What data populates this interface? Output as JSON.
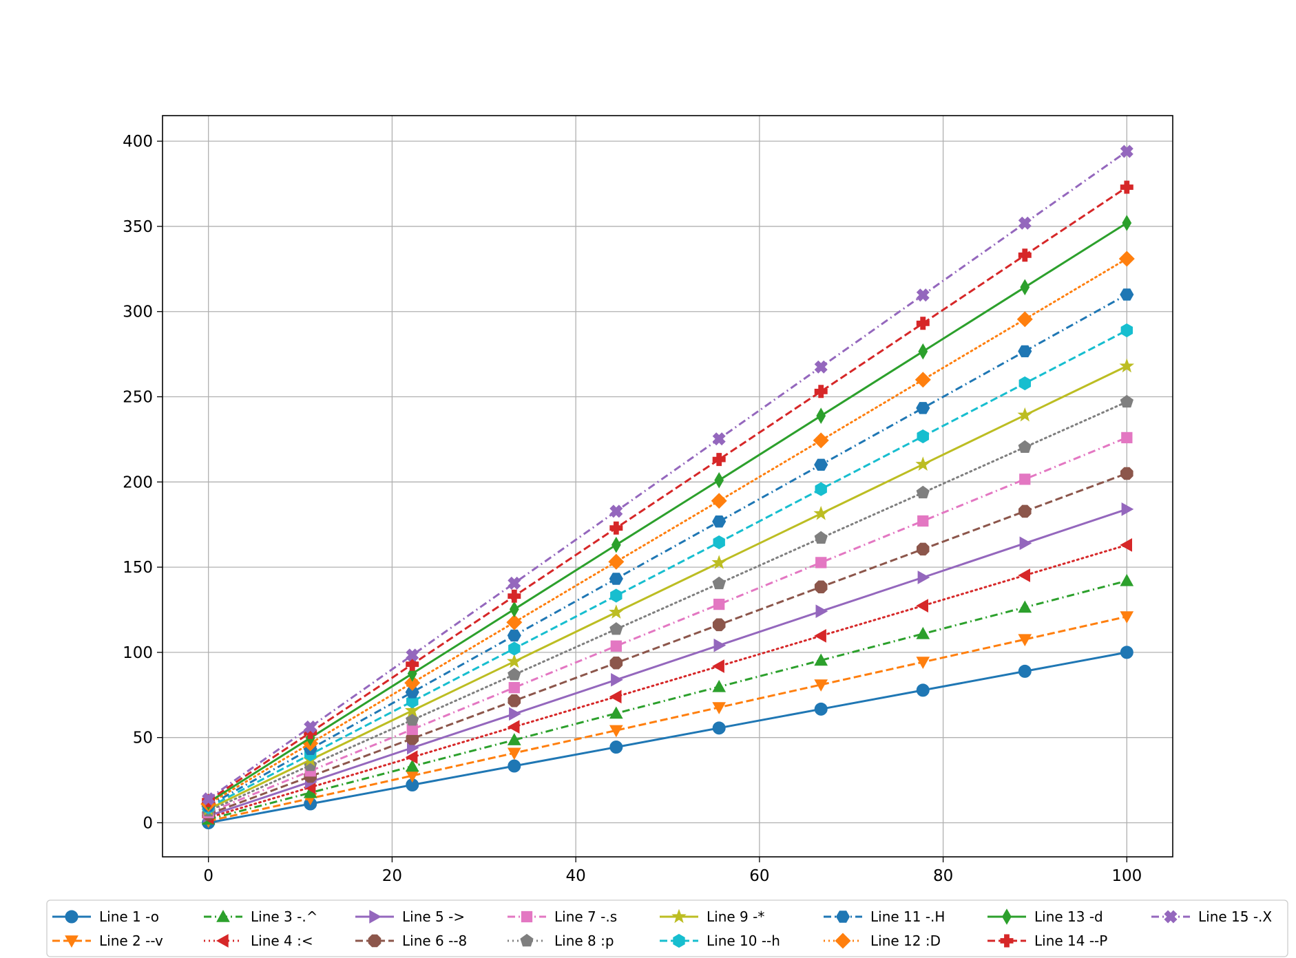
{
  "chart_data": {
    "type": "line",
    "title": "",
    "xlabel": "",
    "ylabel": "",
    "xlim": [
      -5,
      105
    ],
    "ylim": [
      -20,
      415
    ],
    "grid": true,
    "legend_position": "bottom",
    "xticks": [
      0,
      20,
      40,
      60,
      80,
      100
    ],
    "yticks": [
      0,
      50,
      100,
      150,
      200,
      250,
      300,
      350,
      400
    ],
    "x": [
      0,
      11.1,
      22.2,
      33.3,
      44.4,
      55.6,
      66.7,
      77.8,
      88.9,
      100
    ],
    "series": [
      {
        "name": "Line 1 -o",
        "color": "#1f77b4",
        "dash": "solid",
        "marker": "circle",
        "values": [
          0,
          11.1,
          22.2,
          33.3,
          44.4,
          55.6,
          66.7,
          77.8,
          88.9,
          100
        ]
      },
      {
        "name": "Line 2 --v",
        "color": "#ff7f0e",
        "dash": "dashed",
        "marker": "triangle-down",
        "values": [
          1,
          14.3,
          27.6,
          40.9,
          54.2,
          67.7,
          81.0,
          94.3,
          107.6,
          121
        ]
      },
      {
        "name": "Line 3 -.^",
        "color": "#2ca02c",
        "dash": "dashdot",
        "marker": "triangle-up",
        "values": [
          2,
          17.6,
          33.1,
          48.6,
          64.2,
          79.8,
          95.3,
          110.9,
          126.4,
          142
        ]
      },
      {
        "name": "Line 4 :<",
        "color": "#d62728",
        "dash": "dotted",
        "marker": "triangle-left",
        "values": [
          3,
          20.8,
          38.5,
          56.3,
          74.0,
          91.9,
          109.7,
          127.4,
          145.2,
          163
        ]
      },
      {
        "name": "Line 5 ->",
        "color": "#9467bd",
        "dash": "solid",
        "marker": "triangle-right",
        "values": [
          4,
          24.0,
          44.0,
          63.9,
          83.9,
          104.1,
          124.1,
          144.0,
          164.0,
          184
        ]
      },
      {
        "name": "Line 6 --8",
        "color": "#8c564b",
        "dash": "dashed",
        "marker": "octagon",
        "values": [
          5,
          27.2,
          49.4,
          71.6,
          93.8,
          116.2,
          138.4,
          160.6,
          182.8,
          205
        ]
      },
      {
        "name": "Line 7 -.s",
        "color": "#e377c2",
        "dash": "dashdot",
        "marker": "square",
        "values": [
          6,
          30.4,
          54.8,
          79.3,
          103.7,
          128.2,
          152.7,
          177.1,
          201.6,
          226
        ]
      },
      {
        "name": "Line 8 :p",
        "color": "#7f7f7f",
        "dash": "dotted",
        "marker": "pentagon",
        "values": [
          7,
          33.7,
          60.3,
          86.9,
          113.6,
          140.4,
          167.1,
          193.7,
          220.4,
          247
        ]
      },
      {
        "name": "Line 9 -*",
        "color": "#bcbd22",
        "dash": "solid",
        "marker": "star",
        "values": [
          8,
          36.9,
          65.8,
          94.6,
          123.5,
          152.6,
          181.4,
          210.3,
          239.2,
          268
        ]
      },
      {
        "name": "Line 10 --h",
        "color": "#17becf",
        "dash": "dashed",
        "marker": "hexagon",
        "values": [
          9,
          40.1,
          71.2,
          102.2,
          133.3,
          164.6,
          195.8,
          226.8,
          257.9,
          289
        ]
      },
      {
        "name": "Line 11 -.H",
        "color": "#1f77b4",
        "dash": "dashdot",
        "marker": "hexagon2",
        "values": [
          10,
          43.3,
          76.6,
          109.9,
          143.2,
          176.8,
          210.1,
          243.4,
          276.7,
          310
        ]
      },
      {
        "name": "Line 12 :D",
        "color": "#ff7f0e",
        "dash": "dotted",
        "marker": "diamond",
        "values": [
          11,
          46.6,
          82.1,
          117.6,
          153.2,
          188.9,
          224.4,
          260.0,
          295.5,
          331
        ]
      },
      {
        "name": "Line 13 -d",
        "color": "#2ca02c",
        "dash": "solid",
        "marker": "thin-diamond",
        "values": [
          12,
          49.8,
          87.5,
          125.3,
          163.1,
          201.0,
          238.8,
          276.6,
          314.3,
          352
        ]
      },
      {
        "name": "Line 14 --P",
        "color": "#d62728",
        "dash": "dashed",
        "marker": "plus-filled",
        "values": [
          13,
          53.0,
          93.0,
          133.0,
          173.0,
          213.2,
          253.1,
          293.1,
          333.1,
          373
        ]
      },
      {
        "name": "Line 15 -.X",
        "color": "#9467bd",
        "dash": "dashdot",
        "marker": "x-filled",
        "values": [
          14,
          56.2,
          98.4,
          140.6,
          182.8,
          225.3,
          267.5,
          309.7,
          351.9,
          394
        ]
      }
    ]
  }
}
